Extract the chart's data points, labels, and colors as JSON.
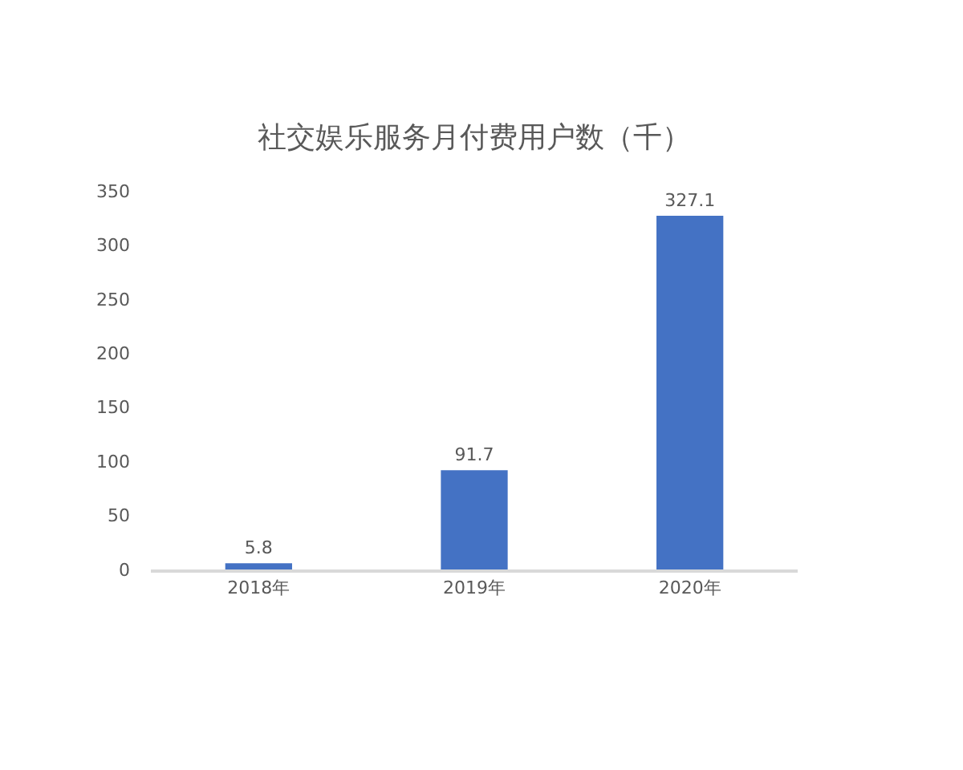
{
  "chart_data": {
    "type": "bar",
    "title": "社交娱乐服务月付费用户数（千）",
    "categories": [
      "2018年",
      "2019年",
      "2020年"
    ],
    "values": [
      5.8,
      91.7,
      327.1
    ],
    "color": "#4472c4",
    "ylim": [
      0,
      350
    ],
    "yticks": [
      0,
      50,
      100,
      150,
      200,
      250,
      300,
      350
    ],
    "data_labels": true
  }
}
